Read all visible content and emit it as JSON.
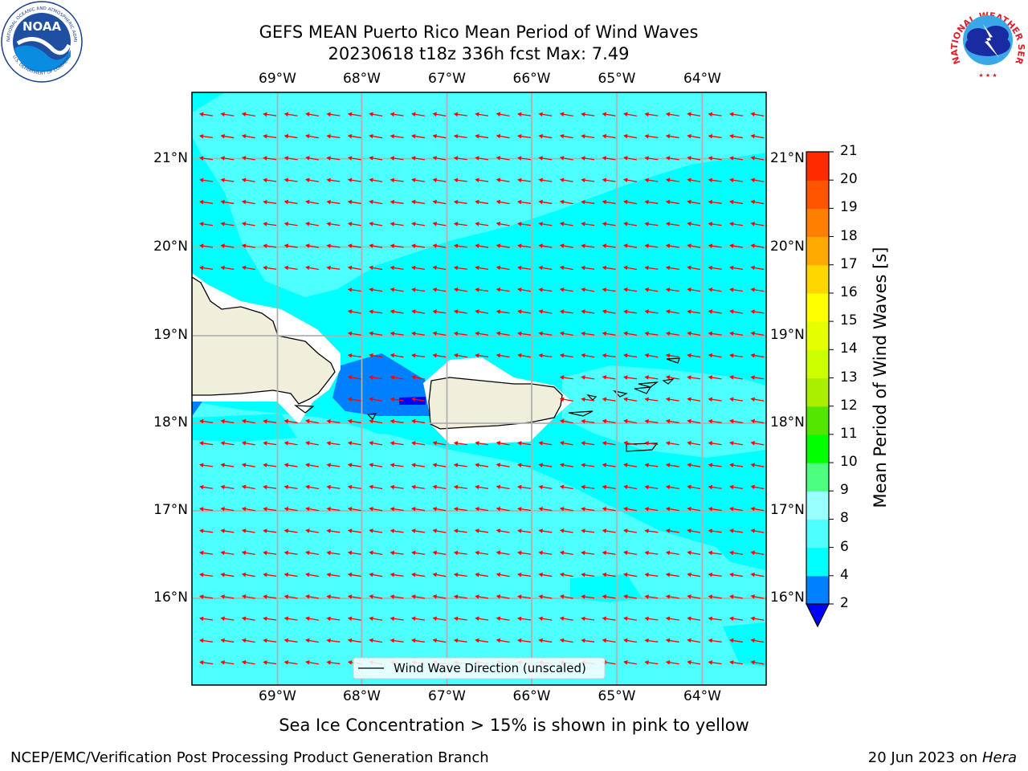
{
  "header": {
    "title_line1": "GEFS MEAN Puerto Rico Mean Period of Wind Waves",
    "title_line2": "20230618 t18z 336h fcst   Max: 7.49"
  },
  "logos": {
    "noaa_text": "NOAA",
    "noaa_ring_text": "NATIONAL OCEANIC AND ATMOSPHERIC ADMINISTRATION",
    "noaa_bottom_text": "U.S. DEPARTMENT OF COMMERCE",
    "nws_ring_text": "NATIONAL WEATHER SERVICE"
  },
  "map": {
    "lon_labels": [
      "69°W",
      "68°W",
      "67°W",
      "66°W",
      "65°W",
      "64°W"
    ],
    "lat_labels": [
      "21°N",
      "20°N",
      "19°N",
      "18°N",
      "17°N",
      "16°N"
    ],
    "legend_label": "Wind Wave Direction (unscaled)",
    "ocean_color": "#00ffff",
    "ocean_light_color": "#4dffff",
    "short_period_color": "#007fff",
    "shortest_period_color": "#0000ff",
    "land_color": "#efefdc",
    "arrow_color": "#ff0000"
  },
  "colorbar": {
    "label": "Mean Period of Wind Waves [s]",
    "ticks": [
      "2",
      "4",
      "6",
      "8",
      "9",
      "10",
      "11",
      "12",
      "13",
      "14",
      "15",
      "16",
      "17",
      "18",
      "19",
      "20",
      "21"
    ],
    "colors": [
      "#0080ff",
      "#00ffff",
      "#4dffff",
      "#99ffff",
      "#4dff80",
      "#00ff00",
      "#55e600",
      "#aaee00",
      "#ccff00",
      "#e6ff00",
      "#ffff00",
      "#ffd700",
      "#ffaa00",
      "#ff8000",
      "#ff5500",
      "#ff2a00"
    ],
    "top_color": "#ff0000",
    "under_color": "#0000ff"
  },
  "notes": {
    "sea_ice": "Sea Ice Concentration > 15% is shown in pink to yellow"
  },
  "footer": {
    "left": "NCEP/EMC/Verification Post Processing Product Generation Branch",
    "date": "20 Jun 2023 on ",
    "host": "Hera"
  }
}
